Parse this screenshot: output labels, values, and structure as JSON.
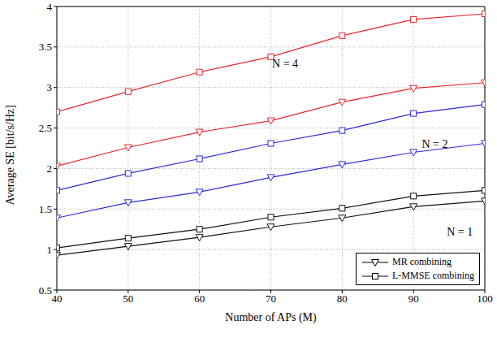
{
  "chart_data": {
    "type": "line",
    "x_label": "Number of APs (M)",
    "y_label": "Average SE [bit/s/Hz]",
    "x": [
      40,
      50,
      60,
      70,
      80,
      90,
      100
    ],
    "xlim": [
      40,
      100
    ],
    "xticks": [
      40,
      50,
      60,
      70,
      80,
      90,
      100
    ],
    "ylim": [
      0.5,
      4
    ],
    "yticks": [
      0.5,
      1,
      1.5,
      2,
      2.5,
      3,
      3.5,
      4
    ],
    "grid": true,
    "legend": "lower right",
    "series": [
      {
        "name": "L-MMSE combining",
        "color": "#e8262b",
        "marker": "square",
        "values": [
          2.7,
          2.95,
          3.19,
          3.38,
          3.64,
          3.84,
          3.91
        ]
      },
      {
        "name": "MR combining",
        "color": "#e8262b",
        "marker": "triangle-down",
        "values": [
          2.03,
          2.26,
          2.45,
          2.59,
          2.82,
          2.99,
          3.06
        ]
      },
      {
        "name": "L-MMSE combining",
        "color": "#2b2bd9",
        "marker": "square",
        "values": [
          1.73,
          1.94,
          2.12,
          2.31,
          2.47,
          2.68,
          2.79
        ]
      },
      {
        "name": "MR combining",
        "color": "#2b2bd9",
        "marker": "triangle-down",
        "values": [
          1.39,
          1.58,
          1.71,
          1.89,
          2.05,
          2.2,
          2.31
        ]
      },
      {
        "name": "L-MMSE combining",
        "color": "#111111",
        "marker": "square",
        "values": [
          1.02,
          1.14,
          1.25,
          1.4,
          1.51,
          1.66,
          1.73
        ]
      },
      {
        "name": "MR combining",
        "color": "#111111",
        "marker": "triangle-down",
        "values": [
          0.93,
          1.04,
          1.15,
          1.28,
          1.39,
          1.53,
          1.6
        ]
      }
    ],
    "annotations": [
      {
        "text": "N = 4",
        "x": 72,
        "y": 3.3
      },
      {
        "text": "N = 2",
        "x": 93,
        "y": 2.3
      },
      {
        "text": "N = 1",
        "x": 96.5,
        "y": 1.22
      }
    ]
  }
}
